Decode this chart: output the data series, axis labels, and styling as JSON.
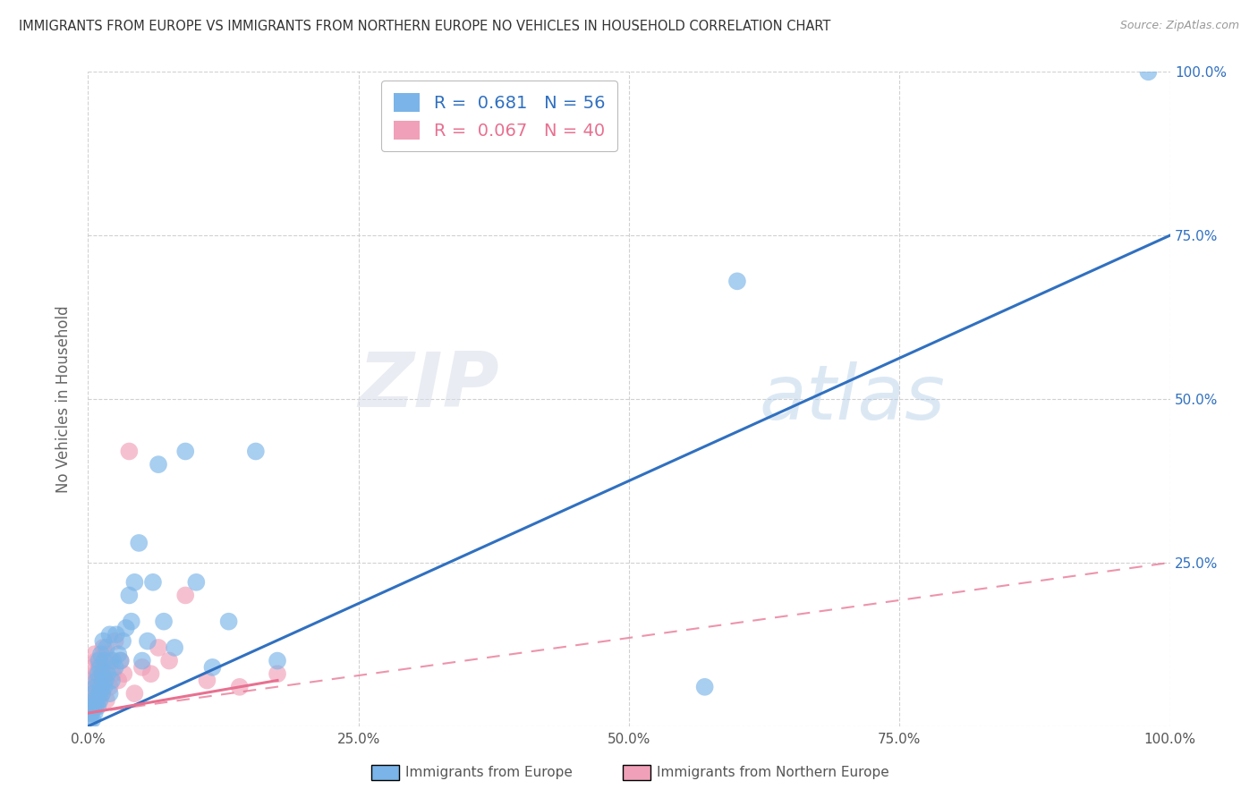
{
  "title": "IMMIGRANTS FROM EUROPE VS IMMIGRANTS FROM NORTHERN EUROPE NO VEHICLES IN HOUSEHOLD CORRELATION CHART",
  "source": "Source: ZipAtlas.com",
  "ylabel": "No Vehicles in Household",
  "xlabel": "",
  "xlim": [
    0,
    1.0
  ],
  "ylim": [
    0,
    1.0
  ],
  "yticks": [
    0.0,
    0.25,
    0.5,
    0.75,
    1.0
  ],
  "xticks": [
    0.0,
    0.25,
    0.5,
    0.75,
    1.0
  ],
  "xtick_labels": [
    "0.0%",
    "25.0%",
    "50.0%",
    "75.0%",
    "100.0%"
  ],
  "right_ytick_labels": [
    "25.0%",
    "50.0%",
    "75.0%",
    "100.0%"
  ],
  "blue_r": 0.681,
  "blue_n": 56,
  "pink_r": 0.067,
  "pink_n": 40,
  "legend1_label": "Immigrants from Europe",
  "legend2_label": "Immigrants from Northern Europe",
  "blue_color": "#7ab4e8",
  "pink_color": "#f0a0b8",
  "blue_line_color": "#3070c0",
  "pink_line_color": "#e87090",
  "background_color": "#ffffff",
  "blue_x": [
    0.002,
    0.003,
    0.004,
    0.005,
    0.005,
    0.006,
    0.006,
    0.007,
    0.007,
    0.008,
    0.008,
    0.009,
    0.009,
    0.01,
    0.01,
    0.011,
    0.011,
    0.012,
    0.012,
    0.013,
    0.013,
    0.014,
    0.015,
    0.015,
    0.016,
    0.017,
    0.018,
    0.02,
    0.02,
    0.022,
    0.023,
    0.025,
    0.026,
    0.028,
    0.03,
    0.032,
    0.035,
    0.038,
    0.04,
    0.043,
    0.047,
    0.05,
    0.055,
    0.06,
    0.065,
    0.07,
    0.08,
    0.09,
    0.1,
    0.115,
    0.13,
    0.155,
    0.175,
    0.57,
    0.6,
    0.98
  ],
  "blue_y": [
    0.01,
    0.02,
    0.01,
    0.03,
    0.05,
    0.02,
    0.04,
    0.03,
    0.06,
    0.04,
    0.07,
    0.03,
    0.08,
    0.05,
    0.1,
    0.04,
    0.09,
    0.06,
    0.11,
    0.05,
    0.08,
    0.13,
    0.06,
    0.1,
    0.07,
    0.12,
    0.08,
    0.05,
    0.14,
    0.07,
    0.1,
    0.09,
    0.14,
    0.11,
    0.1,
    0.13,
    0.15,
    0.2,
    0.16,
    0.22,
    0.28,
    0.1,
    0.13,
    0.22,
    0.4,
    0.16,
    0.12,
    0.42,
    0.22,
    0.09,
    0.16,
    0.42,
    0.1,
    0.06,
    0.68,
    1.0
  ],
  "pink_x": [
    0.002,
    0.003,
    0.003,
    0.004,
    0.005,
    0.005,
    0.006,
    0.006,
    0.007,
    0.007,
    0.008,
    0.008,
    0.009,
    0.01,
    0.01,
    0.011,
    0.012,
    0.013,
    0.014,
    0.015,
    0.016,
    0.017,
    0.018,
    0.02,
    0.021,
    0.023,
    0.025,
    0.028,
    0.03,
    0.033,
    0.038,
    0.043,
    0.05,
    0.058,
    0.065,
    0.075,
    0.09,
    0.11,
    0.14,
    0.175
  ],
  "pink_y": [
    0.02,
    0.04,
    0.07,
    0.03,
    0.05,
    0.09,
    0.06,
    0.11,
    0.03,
    0.08,
    0.05,
    0.1,
    0.07,
    0.04,
    0.09,
    0.06,
    0.08,
    0.05,
    0.12,
    0.07,
    0.11,
    0.04,
    0.09,
    0.06,
    0.1,
    0.08,
    0.13,
    0.07,
    0.1,
    0.08,
    0.42,
    0.05,
    0.09,
    0.08,
    0.12,
    0.1,
    0.2,
    0.07,
    0.06,
    0.08
  ],
  "blue_line_x": [
    0.0,
    1.0
  ],
  "blue_line_y": [
    0.0,
    0.75
  ],
  "pink_solid_line_x": [
    0.0,
    0.175
  ],
  "pink_solid_line_y": [
    0.02,
    0.07
  ],
  "pink_dashed_line_x": [
    0.0,
    1.0
  ],
  "pink_dashed_line_y": [
    0.02,
    0.25
  ]
}
